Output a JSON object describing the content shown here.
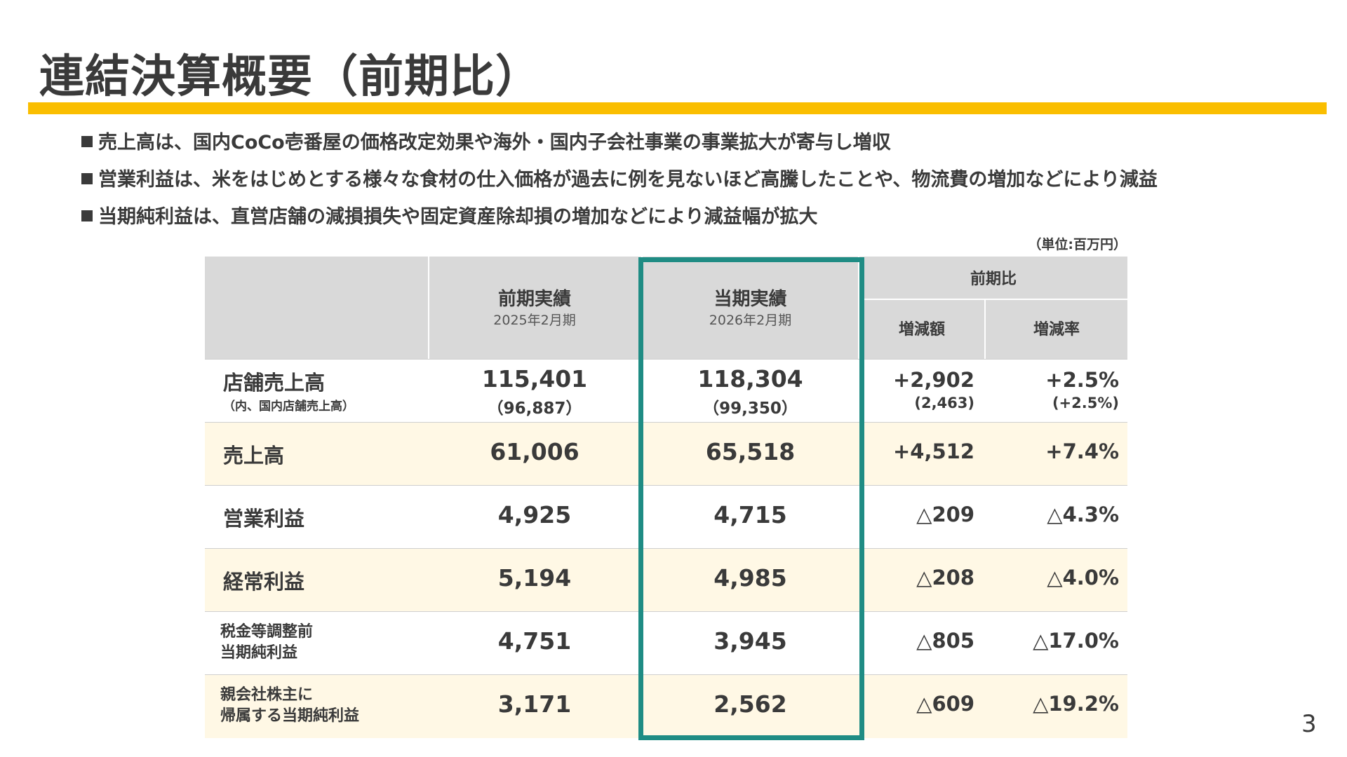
{
  "title": "連結決算概要（前期比）",
  "bullets": [
    "売上高は、国内CoCo壱番屋の価格改定効果や海外・国内子会社事業の事業拡大が寄与し増収",
    "営業利益は、米をはじめとする様々な食材の仕入価格が過去に例を見ないほど高騰したことや、物流費の増加などにより減益",
    "当期純利益は、直営店舗の減損損失や固定資産除却損の増加などにより減益幅が拡大"
  ],
  "unit": "（単位:百万円）",
  "header": {
    "prev": {
      "title": "前期実績",
      "period": "2025年2月期"
    },
    "curr": {
      "title": "当期実績",
      "period": "2026年2月期"
    },
    "compare": {
      "title": "前期比",
      "diff": "増減額",
      "rate": "増減率"
    }
  },
  "rows": [
    {
      "label": "店舗売上高",
      "sublabel": "（内、国内店舗売上高）",
      "prev": "115,401",
      "prev_sub": "（96,887）",
      "curr": "118,304",
      "curr_sub": "（99,350）",
      "diff": "+2,902",
      "diff_sub": "(2,463)",
      "rate": "+2.5%",
      "rate_sub": "(+2.5%)"
    },
    {
      "label": "売上高",
      "prev": "61,006",
      "curr": "65,518",
      "diff": "+4,512",
      "rate": "+7.4%"
    },
    {
      "label": "営業利益",
      "prev": "4,925",
      "curr": "4,715",
      "diff": "△209",
      "rate": "△4.3%"
    },
    {
      "label": "経常利益",
      "prev": "5,194",
      "curr": "4,985",
      "diff": "△208",
      "rate": "△4.0%"
    },
    {
      "label_line1": "税金等調整前",
      "label_line2": "当期純利益",
      "prev": "4,751",
      "curr": "3,945",
      "diff": "△805",
      "rate": "△17.0%"
    },
    {
      "label_line1": "親会社株主に",
      "label_line2": "帰属する当期純利益",
      "prev": "3,171",
      "curr": "2,562",
      "diff": "△609",
      "rate": "△19.2%"
    }
  ],
  "colors": {
    "accent_bar": "#fabe00",
    "highlight_border": "#1f8c84",
    "row_shade": "#fff8e5",
    "header_bg": "#d9d9d9"
  },
  "page_number": "3"
}
